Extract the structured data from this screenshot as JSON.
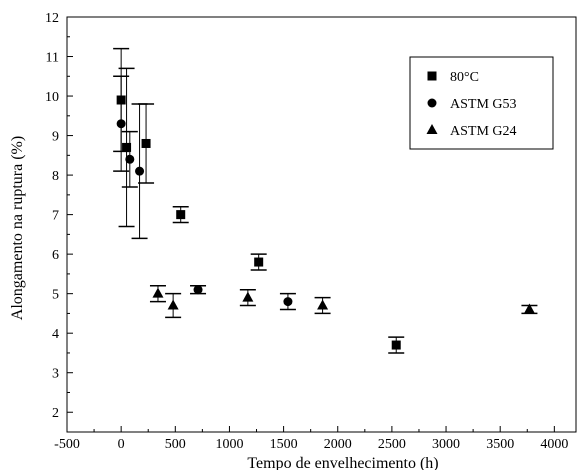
{
  "chart_data": {
    "type": "scatter",
    "title": "",
    "xlabel": "Tempo de envelhecimento (h)",
    "ylabel": "Alongamento na ruptura (%)",
    "xlim": [
      -500,
      4200
    ],
    "ylim": [
      1.5,
      12
    ],
    "xticks": [
      -500,
      0,
      500,
      1000,
      1500,
      2000,
      2500,
      3000,
      3500,
      4000
    ],
    "yticks": [
      2,
      3,
      4,
      5,
      6,
      7,
      8,
      9,
      10,
      11,
      12
    ],
    "grid": false,
    "legend_position": "top-right",
    "series": [
      {
        "name": "80°C",
        "marker": "square",
        "points": [
          {
            "x": 0,
            "y": 9.9,
            "err": 1.3
          },
          {
            "x": 50,
            "y": 8.7,
            "err": 2.0
          },
          {
            "x": 230,
            "y": 8.8,
            "err": 1.0
          },
          {
            "x": 550,
            "y": 7.0,
            "err": 0.2
          },
          {
            "x": 1270,
            "y": 5.8,
            "err": 0.2
          },
          {
            "x": 2540,
            "y": 3.7,
            "err": 0.2
          }
        ]
      },
      {
        "name": "ASTM G53",
        "marker": "circle",
        "points": [
          {
            "x": 0,
            "y": 9.3,
            "err": 1.2
          },
          {
            "x": 80,
            "y": 8.4,
            "err": 0.7
          },
          {
            "x": 170,
            "y": 8.1,
            "err": 1.7
          },
          {
            "x": 710,
            "y": 5.1,
            "err": 0.1
          },
          {
            "x": 1540,
            "y": 4.8,
            "err": 0.2
          }
        ]
      },
      {
        "name": "ASTM G24",
        "marker": "triangle",
        "points": [
          {
            "x": 340,
            "y": 5.0,
            "err": 0.2
          },
          {
            "x": 480,
            "y": 4.7,
            "err": 0.3
          },
          {
            "x": 1170,
            "y": 4.9,
            "err": 0.2
          },
          {
            "x": 1860,
            "y": 4.7,
            "err": 0.2
          },
          {
            "x": 3770,
            "y": 4.6,
            "err": 0.1
          }
        ]
      }
    ]
  }
}
